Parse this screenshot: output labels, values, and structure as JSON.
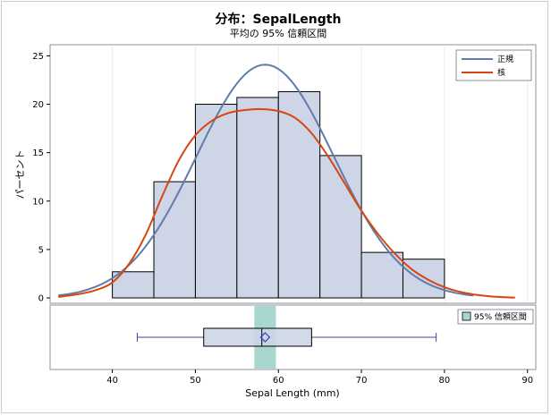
{
  "chart_data": {
    "type": "histogram",
    "title": "分布：SepalLength",
    "subtitle": "平均の 95% 信頼区間",
    "xlabel": "Sepal Length (mm)",
    "ylabel": "パーセント",
    "xlim": [
      32.5,
      91
    ],
    "ylim": [
      0,
      25.5
    ],
    "xticks": [
      "40",
      "50",
      "60",
      "70",
      "80",
      "90"
    ],
    "yticks": [
      "0",
      "5",
      "10",
      "15",
      "20",
      "25"
    ],
    "bins": [
      {
        "start": 40,
        "end": 45,
        "value": 2.7
      },
      {
        "start": 45,
        "end": 50,
        "value": 12.0
      },
      {
        "start": 50,
        "end": 55,
        "value": 20.0
      },
      {
        "start": 55,
        "end": 60,
        "value": 20.7
      },
      {
        "start": 60,
        "end": 65,
        "value": 21.3
      },
      {
        "start": 65,
        "end": 70,
        "value": 14.7
      },
      {
        "start": 70,
        "end": 75,
        "value": 4.7
      },
      {
        "start": 75,
        "end": 80,
        "value": 4.0
      }
    ],
    "series": [
      {
        "name": "正規",
        "color": "#5f7cab",
        "x_range": [
          33.5,
          83.5
        ],
        "params": {
          "mean": 58.4,
          "sd": 8.28
        }
      },
      {
        "name": "核",
        "color": "#d8450e",
        "x_range": [
          33.5,
          88.5
        ],
        "points": [
          [
            33.5,
            0.1
          ],
          [
            36,
            0.4
          ],
          [
            38,
            0.8
          ],
          [
            40,
            1.6
          ],
          [
            42,
            3.5
          ],
          [
            44,
            6.5
          ],
          [
            46,
            10.5
          ],
          [
            48,
            14.2
          ],
          [
            50,
            16.8
          ],
          [
            52,
            18.3
          ],
          [
            54,
            19.1
          ],
          [
            56,
            19.4
          ],
          [
            58,
            19.5
          ],
          [
            60,
            19.3
          ],
          [
            62,
            18.6
          ],
          [
            64,
            17.0
          ],
          [
            66,
            14.6
          ],
          [
            68,
            11.8
          ],
          [
            70,
            9.0
          ],
          [
            72,
            6.6
          ],
          [
            74,
            4.6
          ],
          [
            76,
            3.0
          ],
          [
            78,
            1.9
          ],
          [
            80,
            1.1
          ],
          [
            82,
            0.6
          ],
          [
            84,
            0.3
          ],
          [
            86,
            0.13
          ],
          [
            88.5,
            0.03
          ]
        ]
      }
    ],
    "boxplot": {
      "min": 43,
      "q1": 51,
      "median": 58,
      "mean": 58.4,
      "q3": 64,
      "max": 79,
      "ci_low": 57.1,
      "ci_high": 59.7
    },
    "legend": {
      "position": "top-right",
      "entries": [
        "正規",
        "核"
      ]
    },
    "inset_legend": {
      "position": "top-right",
      "entries": [
        "95% 信頼区間"
      ]
    }
  },
  "colors": {
    "bar_fill": "#cdd5e7",
    "bar_stroke": "#000000",
    "normal": "#5f7cab",
    "kernel": "#d8450e",
    "ci_band": "#a7d7cf",
    "mean_marker": "#2a3fbf",
    "whisker": "#3a4a9a"
  }
}
